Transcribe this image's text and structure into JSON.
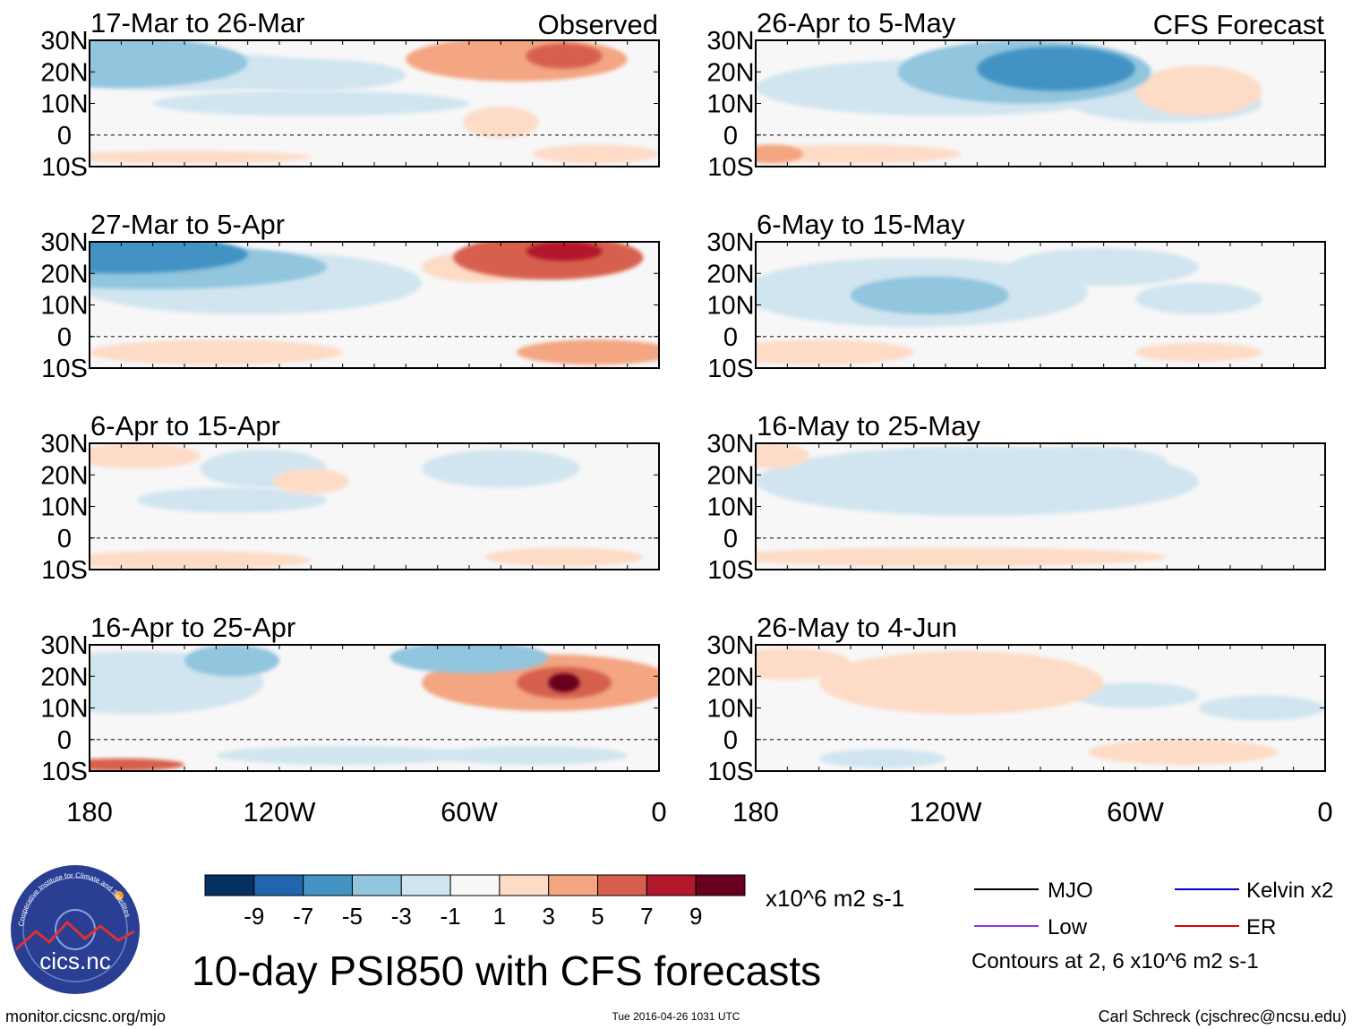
{
  "chart_data": {
    "type": "heatmap",
    "title": "10-day PSI850 with CFS forecasts",
    "columns": [
      {
        "label": "Observed"
      },
      {
        "label": "CFS Forecast"
      }
    ],
    "panels": [
      {
        "title": "17-Mar to 26-Mar",
        "column": 0,
        "row": 0,
        "blobs": [
          {
            "lon": 170,
            "lat": 23,
            "rx": 40,
            "ry": 8,
            "v": -4
          },
          {
            "lon": 150,
            "lat": 20,
            "rx": 50,
            "ry": 6,
            "v": -2
          },
          {
            "lon": 110,
            "lat": 19,
            "rx": 30,
            "ry": 5,
            "v": -2
          },
          {
            "lon": 45,
            "lat": 24,
            "rx": 35,
            "ry": 7,
            "v": 4
          },
          {
            "lon": 30,
            "lat": 25,
            "rx": 12,
            "ry": 4,
            "v": 6
          },
          {
            "lon": 110,
            "lat": 10,
            "rx": 50,
            "ry": 4,
            "v": -2
          },
          {
            "lon": 50,
            "lat": 4,
            "rx": 12,
            "ry": 5,
            "v": 2
          },
          {
            "lon": 150,
            "lat": -7,
            "rx": 40,
            "ry": 2,
            "v": 2
          },
          {
            "lon": 20,
            "lat": -6,
            "rx": 20,
            "ry": 3,
            "v": 2
          }
        ]
      },
      {
        "title": "27-Mar to 5-Apr",
        "column": 0,
        "row": 1,
        "blobs": [
          {
            "lon": 170,
            "lat": 26,
            "rx": 40,
            "ry": 6,
            "v": -7
          },
          {
            "lon": 160,
            "lat": 22,
            "rx": 55,
            "ry": 7,
            "v": -4
          },
          {
            "lon": 130,
            "lat": 17,
            "rx": 55,
            "ry": 10,
            "v": -2
          },
          {
            "lon": 35,
            "lat": 25,
            "rx": 30,
            "ry": 7,
            "v": 5
          },
          {
            "lon": 30,
            "lat": 27,
            "rx": 12,
            "ry": 3,
            "v": 8
          },
          {
            "lon": 55,
            "lat": 22,
            "rx": 20,
            "ry": 5,
            "v": 2
          },
          {
            "lon": 140,
            "lat": -5,
            "rx": 40,
            "ry": 4,
            "v": 2
          },
          {
            "lon": 20,
            "lat": -5,
            "rx": 25,
            "ry": 4,
            "v": 3
          }
        ]
      },
      {
        "title": "6-Apr to 15-Apr",
        "column": 0,
        "row": 2,
        "blobs": [
          {
            "lon": 125,
            "lat": 22,
            "rx": 20,
            "ry": 6,
            "v": -2
          },
          {
            "lon": 135,
            "lat": 12,
            "rx": 30,
            "ry": 4,
            "v": -2
          },
          {
            "lon": 50,
            "lat": 22,
            "rx": 25,
            "ry": 6,
            "v": -3
          },
          {
            "lon": 110,
            "lat": 18,
            "rx": 12,
            "ry": 4,
            "v": 2
          },
          {
            "lon": 165,
            "lat": 26,
            "rx": 20,
            "ry": 4,
            "v": 2
          },
          {
            "lon": 150,
            "lat": -7,
            "rx": 40,
            "ry": 3,
            "v": 2
          },
          {
            "lon": 30,
            "lat": -6,
            "rx": 25,
            "ry": 3,
            "v": 2
          }
        ]
      },
      {
        "title": "16-Apr to 25-Apr",
        "column": 0,
        "row": 3,
        "blobs": [
          {
            "lon": 165,
            "lat": 18,
            "rx": 40,
            "ry": 10,
            "v": -3
          },
          {
            "lon": 135,
            "lat": 25,
            "rx": 15,
            "ry": 5,
            "v": -5
          },
          {
            "lon": 60,
            "lat": 26,
            "rx": 25,
            "ry": 5,
            "v": -4
          },
          {
            "lon": 35,
            "lat": 18,
            "rx": 40,
            "ry": 9,
            "v": 3
          },
          {
            "lon": 30,
            "lat": 18,
            "rx": 15,
            "ry": 5,
            "v": 6
          },
          {
            "lon": 30,
            "lat": 18,
            "rx": 5,
            "ry": 3,
            "v": 9
          },
          {
            "lon": 170,
            "lat": -8,
            "rx": 20,
            "ry": 2,
            "v": 5
          },
          {
            "lon": 100,
            "lat": -5,
            "rx": 40,
            "ry": 3,
            "v": -2
          },
          {
            "lon": 40,
            "lat": -5,
            "rx": 30,
            "ry": 3,
            "v": -2
          }
        ]
      },
      {
        "title": "26-Apr to 5-May",
        "column": 1,
        "row": 0,
        "blobs": [
          {
            "lon": 95,
            "lat": 20,
            "rx": 40,
            "ry": 10,
            "v": -4
          },
          {
            "lon": 85,
            "lat": 21,
            "rx": 25,
            "ry": 7,
            "v": -6
          },
          {
            "lon": 120,
            "lat": 15,
            "rx": 60,
            "ry": 9,
            "v": -2
          },
          {
            "lon": 50,
            "lat": 10,
            "rx": 30,
            "ry": 6,
            "v": -1.5
          },
          {
            "lon": 40,
            "lat": 14,
            "rx": 20,
            "ry": 8,
            "v": 2
          },
          {
            "lon": 175,
            "lat": -6,
            "rx": 10,
            "ry": 3,
            "v": 3
          },
          {
            "lon": 150,
            "lat": -6,
            "rx": 35,
            "ry": 3,
            "v": 2
          }
        ]
      },
      {
        "title": "6-May to 15-May",
        "column": 1,
        "row": 1,
        "blobs": [
          {
            "lon": 125,
            "lat": 13,
            "rx": 25,
            "ry": 6,
            "v": -5
          },
          {
            "lon": 130,
            "lat": 14,
            "rx": 55,
            "ry": 11,
            "v": -2
          },
          {
            "lon": 70,
            "lat": 22,
            "rx": 30,
            "ry": 6,
            "v": -1.5
          },
          {
            "lon": 40,
            "lat": 12,
            "rx": 20,
            "ry": 5,
            "v": -1.5
          },
          {
            "lon": 160,
            "lat": -5,
            "rx": 30,
            "ry": 4,
            "v": 2
          },
          {
            "lon": 40,
            "lat": -5,
            "rx": 20,
            "ry": 3,
            "v": 1.5
          }
        ]
      },
      {
        "title": "16-May to 25-May",
        "column": 1,
        "row": 2,
        "blobs": [
          {
            "lon": 75,
            "lat": 24,
            "rx": 25,
            "ry": 5,
            "v": -3
          },
          {
            "lon": 110,
            "lat": 18,
            "rx": 70,
            "ry": 11,
            "v": -2
          },
          {
            "lon": 130,
            "lat": 16,
            "rx": 15,
            "ry": 5,
            "v": -3
          },
          {
            "lon": 120,
            "lat": -6,
            "rx": 70,
            "ry": 3,
            "v": 1.5
          },
          {
            "lon": 175,
            "lat": 26,
            "rx": 12,
            "ry": 4,
            "v": 2
          }
        ]
      },
      {
        "title": "26-May to 4-Jun",
        "column": 1,
        "row": 3,
        "blobs": [
          {
            "lon": 115,
            "lat": 18,
            "rx": 45,
            "ry": 10,
            "v": 2
          },
          {
            "lon": 170,
            "lat": 24,
            "rx": 20,
            "ry": 5,
            "v": 2
          },
          {
            "lon": 60,
            "lat": 14,
            "rx": 20,
            "ry": 4,
            "v": -1.5
          },
          {
            "lon": 20,
            "lat": 10,
            "rx": 20,
            "ry": 4,
            "v": -1.5
          },
          {
            "lon": 45,
            "lat": -4,
            "rx": 30,
            "ry": 4,
            "v": 2
          },
          {
            "lon": 140,
            "lat": -6,
            "rx": 20,
            "ry": 3,
            "v": -1.5
          }
        ]
      }
    ],
    "lon_ticks": [
      "180",
      "120W",
      "60W",
      "0"
    ],
    "lon_range": [
      180,
      0
    ],
    "lat_ticks": [
      "30N",
      "20N",
      "10N",
      "0",
      "10S"
    ],
    "lat_range": [
      30,
      -10
    ],
    "colorbar": {
      "levels": [
        -11,
        -9,
        -7,
        -5,
        -3,
        -1,
        1,
        3,
        5,
        7,
        9,
        11
      ],
      "tick_labels": [
        "-9",
        "-7",
        "-5",
        "-3",
        "-1",
        "1",
        "3",
        "5",
        "7",
        "9"
      ],
      "units": "x10^6 m2 s-1",
      "colors": [
        "#053061",
        "#2166ac",
        "#4393c3",
        "#92c5de",
        "#d1e5f0",
        "#f7f7f7",
        "#fddbc7",
        "#f4a582",
        "#d6604d",
        "#b2182b",
        "#67001f"
      ]
    },
    "legend": [
      {
        "label": "MJO",
        "color": "#000000"
      },
      {
        "label": "Kelvin x2",
        "color": "#0000dd"
      },
      {
        "label": "Low",
        "color": "#9a30e0"
      },
      {
        "label": "ER",
        "color": "#e00000"
      }
    ],
    "contour_note": "Contours at 2, 6 x10^6 m2 s-1"
  },
  "logo": {
    "text": "cics.nc",
    "ring_text": "Cooperative Institute for Climate and Satellites"
  },
  "footer": {
    "url": "monitor.cicsnc.org/mjo",
    "timestamp": "Tue 2016-04-26 1031 UTC",
    "author": "Carl Schreck (cjschrec@ncsu.edu)"
  }
}
